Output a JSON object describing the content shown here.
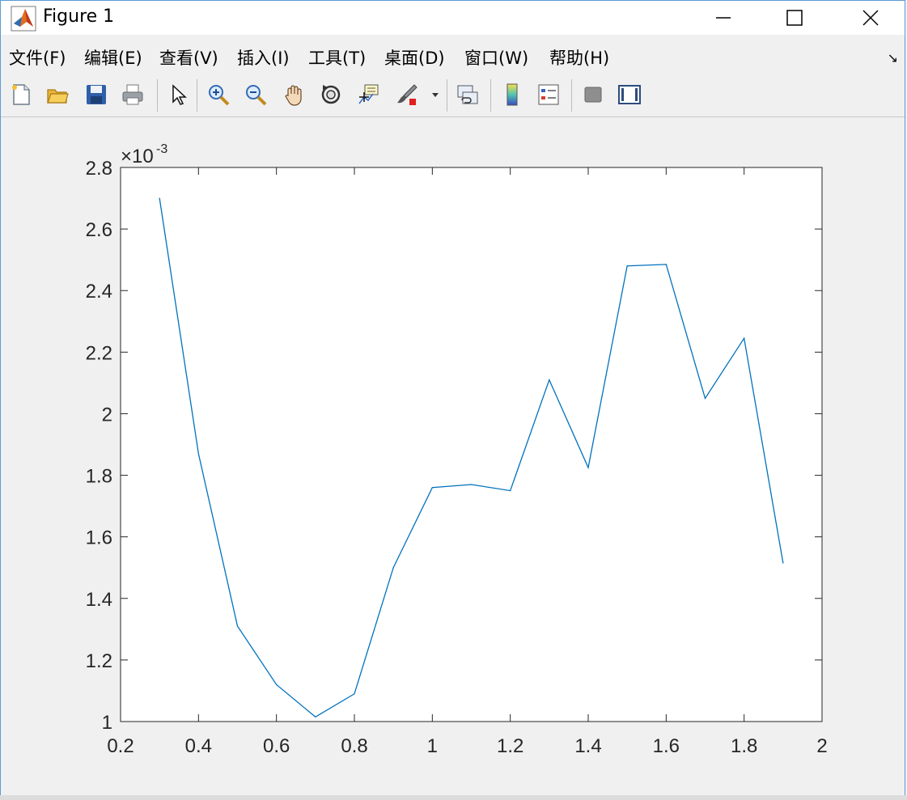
{
  "window": {
    "title": "Figure 1",
    "controls": {
      "minimize": "minimize",
      "maximize": "maximize",
      "close": "close"
    }
  },
  "menu": {
    "items": [
      {
        "label": "文件(F)"
      },
      {
        "label": "编辑(E)"
      },
      {
        "label": "查看(V)"
      },
      {
        "label": "插入(I)"
      },
      {
        "label": "工具(T)"
      },
      {
        "label": "桌面(D)"
      },
      {
        "label": "窗口(W)"
      },
      {
        "label": "帮助(H)"
      }
    ]
  },
  "toolbar": {
    "icons": [
      "new-figure-icon",
      "open-icon",
      "save-icon",
      "print-icon",
      "pointer-icon",
      "zoom-in-icon",
      "zoom-out-icon",
      "pan-icon",
      "rotate-icon",
      "data-cursor-icon",
      "brush-icon",
      "link-plot-icon",
      "colorbar-icon",
      "legend-icon",
      "hide-plot-tools-icon",
      "show-plot-tools-icon"
    ]
  },
  "chart_data": {
    "type": "line",
    "title": "",
    "xlabel": "",
    "ylabel": "",
    "exponent_label": "×10",
    "exponent_value": "-3",
    "xlim": [
      0.2,
      2
    ],
    "ylim": [
      1,
      2.8
    ],
    "xticks": [
      "0.2",
      "0.4",
      "0.6",
      "0.8",
      "1",
      "1.2",
      "1.4",
      "1.6",
      "1.8",
      "2"
    ],
    "yticks": [
      "1",
      "1.2",
      "1.4",
      "1.6",
      "1.8",
      "2",
      "2.2",
      "2.4",
      "2.6",
      "2.8"
    ],
    "series": [
      {
        "color": "#0072bd",
        "x": [
          0.3,
          0.4,
          0.5,
          0.6,
          0.7,
          0.8,
          0.9,
          1.0,
          1.1,
          1.2,
          1.3,
          1.4,
          1.5,
          1.6,
          1.7,
          1.8,
          1.9
        ],
        "y": [
          2.7,
          1.87,
          1.31,
          1.12,
          1.015,
          1.09,
          1.5,
          1.76,
          1.77,
          1.75,
          2.11,
          1.825,
          2.48,
          2.485,
          2.05,
          2.245,
          1.515
        ]
      }
    ],
    "grid": false,
    "box": true
  }
}
